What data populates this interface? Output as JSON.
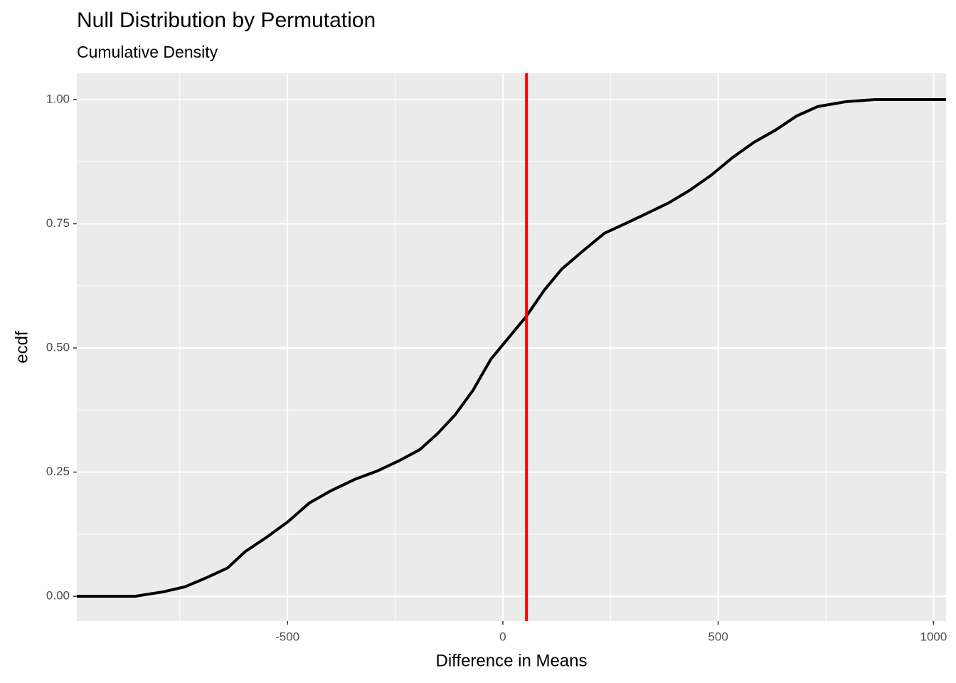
{
  "chart_data": {
    "type": "line",
    "title": "Null Distribution by Permutation",
    "subtitle": "Cumulative Density",
    "x_label": "Difference in Means",
    "y_label": "ecdf",
    "xlim": [
      -989,
      1029
    ],
    "ylim": [
      -0.05,
      1.053
    ],
    "xticks": [
      -500,
      0,
      500,
      1000
    ],
    "yticks": [
      {
        "value": 0,
        "label": "0.00"
      },
      {
        "value": 0.25,
        "label": "0.25"
      },
      {
        "value": 0.5,
        "label": "0.50"
      },
      {
        "value": 0.75,
        "label": "0.75"
      },
      {
        "value": 1,
        "label": "1.00"
      }
    ],
    "grid": true,
    "series": [
      {
        "color": "#000000",
        "x": [
          -989,
          -854,
          -788,
          -738,
          -689,
          -639,
          -598,
          -548,
          -499,
          -449,
          -400,
          -342,
          -292,
          -243,
          -193,
          -152,
          -111,
          -69,
          -28,
          13,
          54,
          96,
          137,
          187,
          236,
          286,
          335,
          385,
          435,
          484,
          533,
          583,
          632,
          682,
          731,
          798,
          864,
          1029
        ],
        "values": [
          0,
          0,
          0.009,
          0.019,
          0.037,
          0.057,
          0.09,
          0.119,
          0.15,
          0.188,
          0.212,
          0.236,
          0.252,
          0.272,
          0.295,
          0.327,
          0.365,
          0.415,
          0.477,
          0.52,
          0.563,
          0.616,
          0.659,
          0.696,
          0.731,
          0.751,
          0.771,
          0.792,
          0.818,
          0.848,
          0.883,
          0.914,
          0.938,
          0.967,
          0.986,
          0.996,
          1,
          1
        ]
      }
    ],
    "vline": {
      "x": 55,
      "color": "#ff0000"
    }
  }
}
